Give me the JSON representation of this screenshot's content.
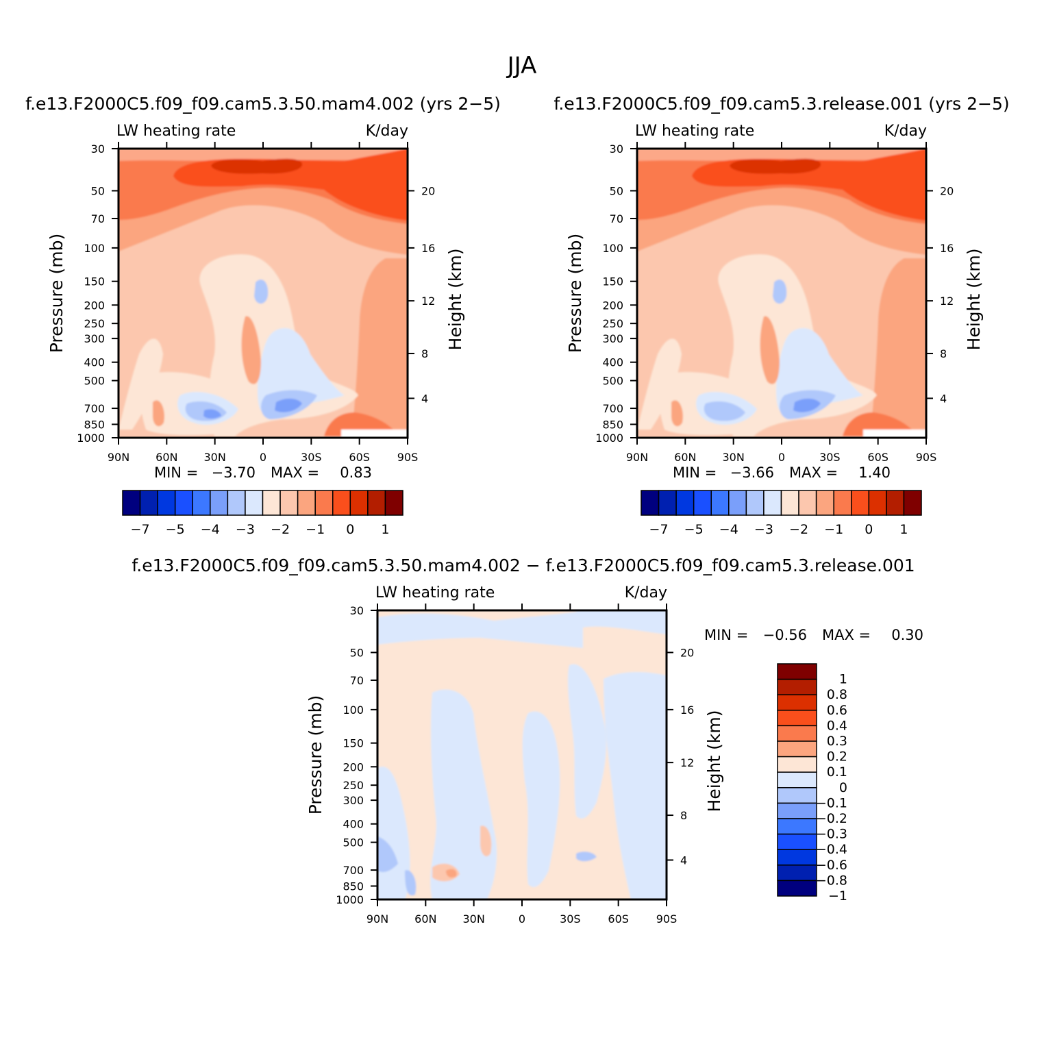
{
  "page": {
    "title": "JJA"
  },
  "panels": [
    {
      "title": "f.e13.F2000C5.f09_f09.cam5.3.50.mam4.002 (yrs 2−5)",
      "left_label": "LW heating rate",
      "right_label": "K/day",
      "min_label": "MIN =",
      "min_value": "−3.70",
      "max_label": "MAX =",
      "max_value": "0.83"
    },
    {
      "title": "f.e13.F2000C5.f09_f09.cam5.3.release.001 (yrs 2−5)",
      "left_label": "LW heating rate",
      "right_label": "K/day",
      "min_label": "MIN =",
      "min_value": "−3.66",
      "max_label": "MAX =",
      "max_value": "1.40"
    },
    {
      "title": "f.e13.F2000C5.f09_f09.cam5.3.50.mam4.002 − f.e13.F2000C5.f09_f09.cam5.3.release.001",
      "left_label": "LW heating rate",
      "right_label": "K/day",
      "min_label": "MIN =",
      "min_value": "−0.56",
      "max_label": "MAX =",
      "max_value": "0.30"
    }
  ],
  "axes": {
    "ylabel": "Pressure (mb)",
    "ylabel_right": "Height (km)",
    "pressure_ticks": [
      "30",
      "50",
      "70",
      "100",
      "150",
      "200",
      "250",
      "300",
      "400",
      "500",
      "700",
      "850",
      "1000"
    ],
    "height_ticks": [
      "20",
      "16",
      "12",
      "8",
      "4"
    ],
    "lat_ticks": [
      "90N",
      "60N",
      "30N",
      "0",
      "30S",
      "60S",
      "90S"
    ]
  },
  "colorbars": {
    "main": {
      "colors": [
        "#00007f",
        "#0020b0",
        "#0038e0",
        "#1a50ff",
        "#3c78ff",
        "#7a9ffa",
        "#b0c8fb",
        "#dbe8fd",
        "#fde6d6",
        "#fcc7ae",
        "#fba57f",
        "#fa7a4d",
        "#fa4f1c",
        "#dc3000",
        "#b31e00",
        "#7f0000"
      ],
      "tick_labels": [
        "−7",
        "−5",
        "−4",
        "−3",
        "−2",
        "−1",
        "0",
        "1"
      ]
    },
    "diff": {
      "colors": [
        "#7f0000",
        "#b31e00",
        "#dc3000",
        "#fa4f1c",
        "#fa7a4d",
        "#fba57f",
        "#fde6d6",
        "#dbe8fd",
        "#b0c8fb",
        "#7a9ffa",
        "#3c78ff",
        "#1a50ff",
        "#0038e0",
        "#0020b0",
        "#00007f"
      ],
      "tick_labels": [
        "1",
        "0.8",
        "0.6",
        "0.4",
        "0.3",
        "0.2",
        "0.1",
        "0",
        "−0.1",
        "−0.2",
        "−0.3",
        "−0.4",
        "−0.6",
        "−0.8",
        "−1"
      ]
    }
  },
  "chart_data": [
    {
      "type": "heatmap",
      "title": "f.e13.F2000C5.f09_f09.cam5.3.50.mam4.002 (yrs 2−5)",
      "variable": "LW heating rate",
      "units": "K/day",
      "xlabel": "",
      "ylabel": "Pressure (mb)",
      "ylabel_right": "Height (km)",
      "x_ticks": [
        "90N",
        "60N",
        "30N",
        "0",
        "30S",
        "60S",
        "90S"
      ],
      "y_ticks": [
        30,
        50,
        70,
        100,
        150,
        200,
        250,
        300,
        400,
        500,
        700,
        850,
        1000
      ],
      "y_scale": "log",
      "y_inverted": true,
      "min": -3.7,
      "max": 0.83,
      "contour_levels": [
        -7,
        -6,
        -5,
        -4.5,
        -4,
        -3.5,
        -3,
        -2.5,
        -2,
        -1.5,
        -1,
        -0.5,
        0,
        0.5,
        1
      ]
    },
    {
      "type": "heatmap",
      "title": "f.e13.F2000C5.f09_f09.cam5.3.release.001 (yrs 2−5)",
      "variable": "LW heating rate",
      "units": "K/day",
      "xlabel": "",
      "ylabel": "Pressure (mb)",
      "ylabel_right": "Height (km)",
      "x_ticks": [
        "90N",
        "60N",
        "30N",
        "0",
        "30S",
        "60S",
        "90S"
      ],
      "y_ticks": [
        30,
        50,
        70,
        100,
        150,
        200,
        250,
        300,
        400,
        500,
        700,
        850,
        1000
      ],
      "y_scale": "log",
      "y_inverted": true,
      "min": -3.66,
      "max": 1.4,
      "contour_levels": [
        -7,
        -6,
        -5,
        -4.5,
        -4,
        -3.5,
        -3,
        -2.5,
        -2,
        -1.5,
        -1,
        -0.5,
        0,
        0.5,
        1
      ]
    },
    {
      "type": "heatmap",
      "title": "f.e13.F2000C5.f09_f09.cam5.3.50.mam4.002 − f.e13.F2000C5.f09_f09.cam5.3.release.001",
      "variable": "LW heating rate",
      "units": "K/day",
      "xlabel": "",
      "ylabel": "Pressure (mb)",
      "ylabel_right": "Height (km)",
      "x_ticks": [
        "90N",
        "60N",
        "30N",
        "0",
        "30S",
        "60S",
        "90S"
      ],
      "y_ticks": [
        30,
        50,
        70,
        100,
        150,
        200,
        250,
        300,
        400,
        500,
        700,
        850,
        1000
      ],
      "y_scale": "log",
      "y_inverted": true,
      "min": -0.56,
      "max": 0.3,
      "contour_levels": [
        -1,
        -0.8,
        -0.6,
        -0.4,
        -0.3,
        -0.2,
        -0.1,
        0,
        0.1,
        0.2,
        0.3,
        0.4,
        0.6,
        0.8,
        1
      ]
    }
  ]
}
